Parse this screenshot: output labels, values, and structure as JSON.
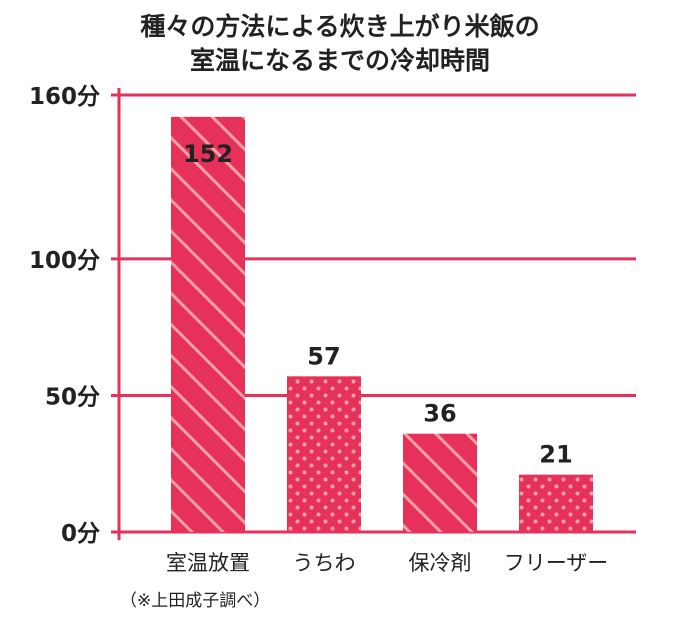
{
  "chart_data": {
    "type": "bar",
    "title_lines": [
      "種々の方法による炊き上がり米飯の",
      "室温になるまでの冷却時間"
    ],
    "xlabel": "",
    "ylabel": "",
    "y_tick_labels": [
      "0分",
      "50分",
      "100分",
      "160分"
    ],
    "y_tick_values": [
      0,
      50,
      100,
      160
    ],
    "ylim": [
      0,
      160
    ],
    "categories": [
      "室温放置",
      "うちわ",
      "保冷剤",
      "フリーザー"
    ],
    "values": [
      152,
      57,
      36,
      21
    ],
    "data_labels": [
      "152",
      "57",
      "36",
      "21"
    ],
    "bar_patterns": [
      "stripe",
      "dot",
      "stripe",
      "dot"
    ],
    "grid": true,
    "note": "（※上田成子調べ）",
    "colors": {
      "bar": "#e6325a",
      "bar_pattern": "#f6a0a6",
      "axis": "#e6325a",
      "grid": "#e6325a",
      "text": "#222222"
    }
  }
}
